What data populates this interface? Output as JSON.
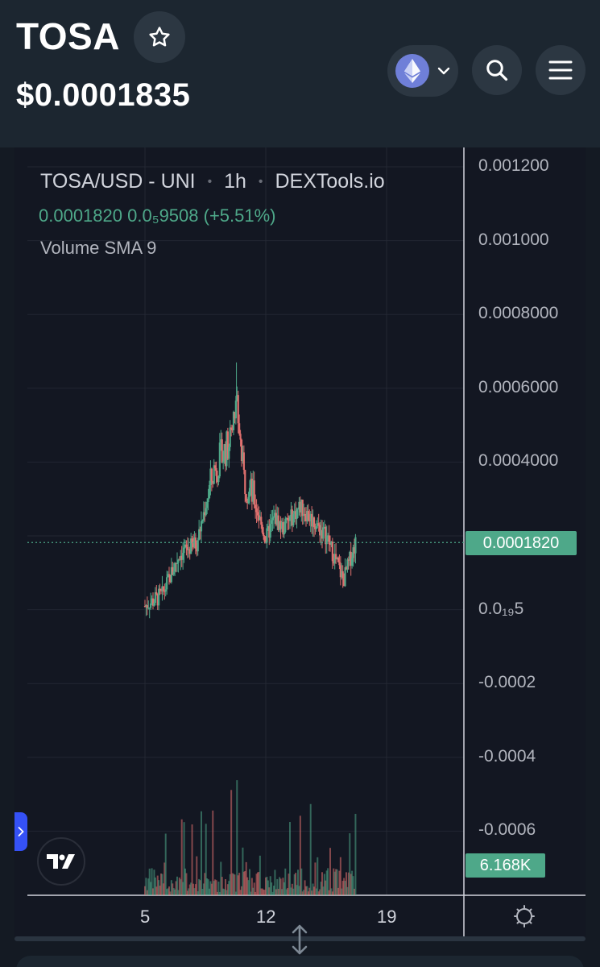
{
  "header": {
    "token_symbol": "TOSA",
    "price": "$0.0001835",
    "chain": "ethereum-icon",
    "icons": [
      "star-icon",
      "ethereum-icon",
      "chevron-down-icon",
      "search-icon",
      "menu-icon"
    ]
  },
  "chart": {
    "pair": "TOSA/USD",
    "dex": "UNI",
    "interval": "1h",
    "source": "DEXTools.io",
    "legend_price": "0.0001820",
    "legend_change": "0.0₅9508 (+5.51%)",
    "indicator": "Volume SMA 9",
    "price_tag": "0.0001820",
    "volume_tag": "6.168K"
  },
  "chart_data": {
    "type": "candlestick",
    "title": "TOSA/USD · UNI · 1h · DEXTools.io",
    "y_tick_labels": [
      "0.001200",
      "0.001000",
      "0.0008000",
      "0.0006000",
      "0.0004000",
      "0.0₁₉5",
      "-0.0002",
      "-0.0004",
      "-0.0006"
    ],
    "x_tick_labels": [
      "5",
      "12",
      "19"
    ],
    "ylim": [
      -0.0007,
      0.0012
    ],
    "last_price": 0.000182,
    "approx_price_path": [
      {
        "day": 5.0,
        "price": 1e-05
      },
      {
        "day": 6.0,
        "price": 4e-05
      },
      {
        "day": 7.0,
        "price": 0.00015
      },
      {
        "day": 8.0,
        "price": 0.00018
      },
      {
        "day": 9.0,
        "price": 0.00038
      },
      {
        "day": 10.0,
        "price": 0.00046
      },
      {
        "day": 10.3,
        "price": 0.00058
      },
      {
        "day": 10.7,
        "price": 0.00036
      },
      {
        "day": 11.3,
        "price": 0.0003
      },
      {
        "day": 12.0,
        "price": 0.00019
      },
      {
        "day": 12.5,
        "price": 0.00025
      },
      {
        "day": 13.0,
        "price": 0.00022
      },
      {
        "day": 14.0,
        "price": 0.00028
      },
      {
        "day": 15.5,
        "price": 0.0002
      },
      {
        "day": 16.5,
        "price": 8e-05
      },
      {
        "day": 17.2,
        "price": 0.000182
      }
    ],
    "volume_last": "6.168K"
  },
  "colors": {
    "up": "#4ea889",
    "down": "#e0706e",
    "background": "#131722",
    "header": "#1c2630",
    "accent": "#3551f6"
  }
}
